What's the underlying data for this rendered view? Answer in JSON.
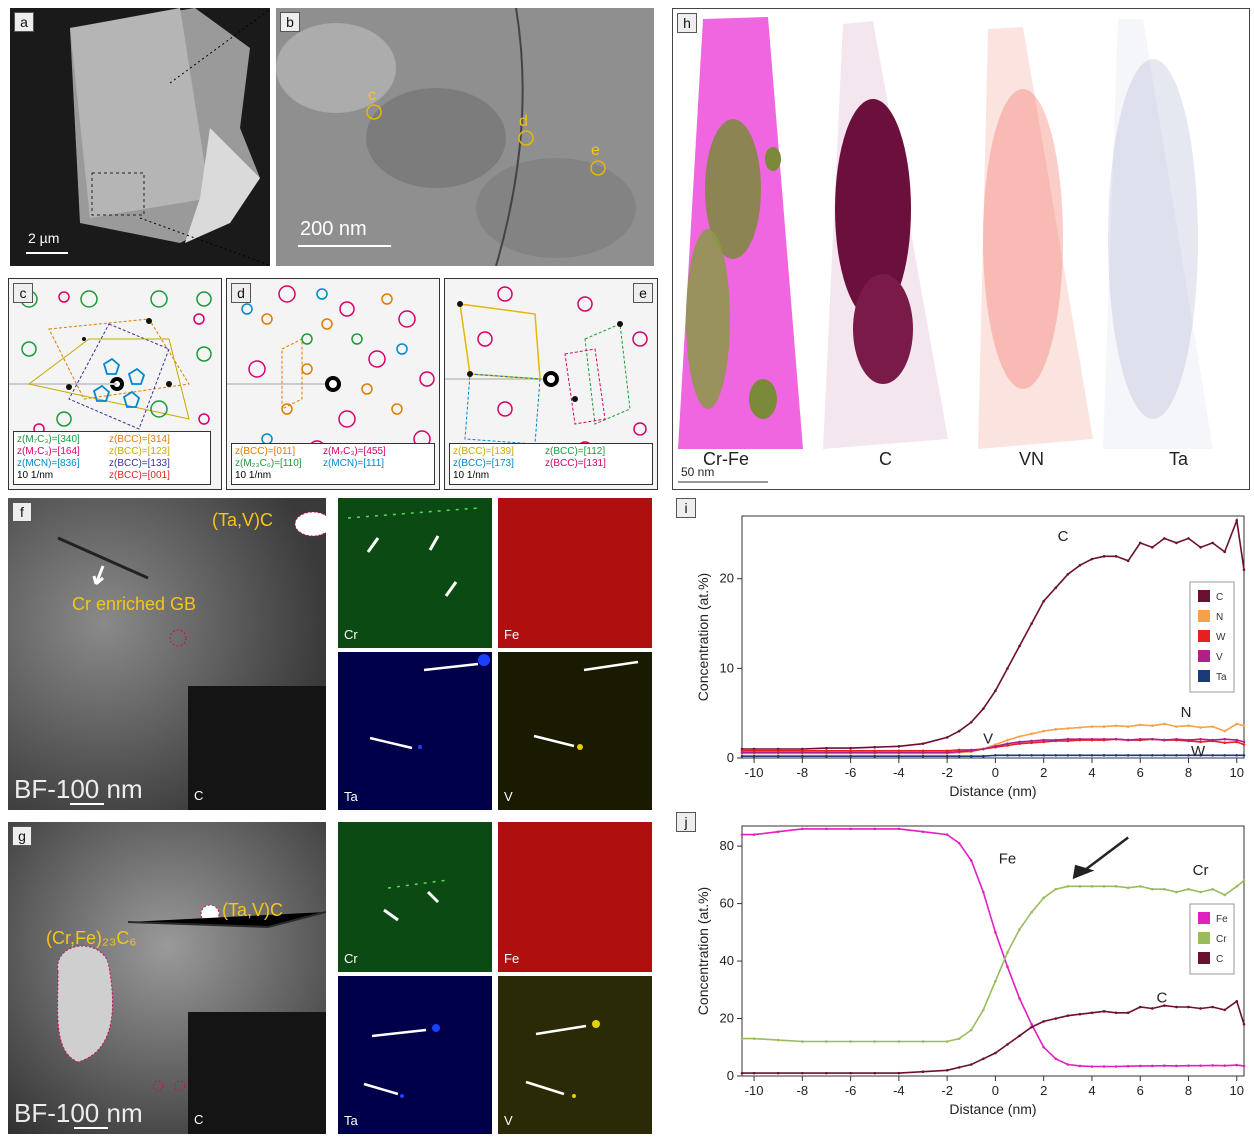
{
  "labels": {
    "a": "a",
    "b": "b",
    "c": "c",
    "d": "d",
    "e": "e",
    "f": "f",
    "g": "g",
    "h": "h",
    "i": "i",
    "j": "j"
  },
  "scalebars": {
    "a": "2 µm",
    "b": "200 nm",
    "c": "10 1/nm",
    "d": "10 1/nm",
    "e": "10 1/nm",
    "f": "BF-100 nm",
    "g": "BF-100 nm",
    "h": "50 nm"
  },
  "panel_b_markers": [
    "c",
    "d",
    "e"
  ],
  "panel_c_zones": [
    {
      "text": "z(M₇C₃)=[340]",
      "color": "#1a9a3a"
    },
    {
      "text": "z(BCC)=[314]",
      "color": "#e07b00"
    },
    {
      "text": "z(M₇C₃)=[164]",
      "color": "#d6006b"
    },
    {
      "text": "z(BCC)=[123]",
      "color": "#c9a800"
    },
    {
      "text": "z(MCN)=[836]",
      "color": "#0088cc"
    },
    {
      "text": "z(BCC)=[133]",
      "color": "#333399"
    },
    {
      "text": "z(BCC)=[001]",
      "color": "#dd2222"
    }
  ],
  "panel_d_zones": [
    {
      "text": "z(BCC)=[011]",
      "color": "#e07b00"
    },
    {
      "text": "z(M₇C₃)=[455]",
      "color": "#d6006b"
    },
    {
      "text": "z(M₂₃C₆)=[110]",
      "color": "#1a9a3a"
    },
    {
      "text": "z(MCN)=[111]",
      "color": "#0088cc"
    }
  ],
  "panel_e_zones": [
    {
      "text": "z(BCC)=[139]",
      "color": "#c9a800"
    },
    {
      "text": "z(BCC)=[112]",
      "color": "#1a9a3a"
    },
    {
      "text": "z(BCC)=[173]",
      "color": "#0088cc"
    },
    {
      "text": "z(BCC)=[131]",
      "color": "#d6006b"
    }
  ],
  "panel_h_labels": [
    "Cr-Fe",
    "C",
    "VN",
    "Ta"
  ],
  "panel_f": {
    "tavc": "(Ta,V)C",
    "gb": "Cr enriched GB",
    "inset": "C"
  },
  "panel_g": {
    "tavc": "(Ta,V)C",
    "crfe": "(Cr,Fe)₂₃C₆",
    "inset": "C"
  },
  "maps_f": [
    "Cr",
    "Fe",
    "Ta",
    "V"
  ],
  "maps_g": [
    "Cr",
    "Fe",
    "Ta",
    "V"
  ],
  "chart_data": [
    {
      "type": "line",
      "panel": "i",
      "xlabel": "Distance (nm)",
      "ylabel": "Concentration (at.%)",
      "xlim": [
        -10.5,
        10.3
      ],
      "ylim": [
        0,
        27
      ],
      "xticks": [
        "-10",
        "-8",
        "-6",
        "-4",
        "-2",
        "0",
        "2",
        "4",
        "6",
        "8",
        "10"
      ],
      "yticks": [
        "0",
        "10",
        "20"
      ],
      "legend": [
        "C",
        "N",
        "W",
        "V",
        "Ta"
      ],
      "annotations": [
        "C",
        "N",
        "V",
        "W"
      ],
      "x": [
        -10.5,
        -10,
        -9,
        -8,
        -7,
        -6,
        -5,
        -4,
        -3,
        -2,
        -1.5,
        -1,
        -0.5,
        0,
        0.5,
        1,
        1.5,
        2,
        2.5,
        3,
        3.5,
        4,
        4.5,
        5,
        5.5,
        6,
        6.5,
        7,
        7.5,
        8,
        8.5,
        9,
        9.5,
        10,
        10.3
      ],
      "series": [
        {
          "name": "C",
          "color": "#6b1030",
          "values": [
            1.0,
            1.0,
            1.0,
            1.0,
            1.1,
            1.1,
            1.2,
            1.3,
            1.6,
            2.3,
            3.0,
            4.0,
            5.5,
            7.5,
            10.0,
            12.5,
            15.0,
            17.5,
            19.0,
            20.5,
            21.5,
            22.2,
            22.5,
            22.5,
            22.0,
            24.0,
            23.5,
            24.5,
            24.0,
            24.5,
            23.5,
            24.0,
            23.0,
            26.5,
            21.0
          ]
        },
        {
          "name": "N",
          "color": "#f7a04a",
          "values": [
            0.5,
            0.5,
            0.5,
            0.5,
            0.5,
            0.5,
            0.5,
            0.5,
            0.5,
            0.5,
            0.6,
            0.7,
            1.0,
            1.5,
            2.0,
            2.4,
            2.7,
            3.0,
            3.2,
            3.3,
            3.4,
            3.5,
            3.5,
            3.6,
            3.5,
            3.7,
            3.6,
            3.8,
            3.5,
            3.6,
            3.4,
            3.5,
            3.0,
            3.8,
            3.6
          ]
        },
        {
          "name": "W",
          "color": "#e62020",
          "values": [
            0.8,
            0.8,
            0.8,
            0.8,
            0.8,
            0.8,
            0.8,
            0.8,
            0.8,
            0.8,
            0.9,
            0.9,
            1.0,
            1.2,
            1.4,
            1.6,
            1.7,
            1.8,
            1.9,
            1.9,
            2.0,
            2.0,
            2.0,
            2.1,
            2.0,
            2.0,
            2.1,
            2.0,
            2.0,
            1.9,
            1.8,
            1.9,
            1.7,
            1.8,
            1.5
          ]
        },
        {
          "name": "V",
          "color": "#b0208a",
          "values": [
            0.6,
            0.6,
            0.6,
            0.6,
            0.6,
            0.6,
            0.6,
            0.6,
            0.6,
            0.6,
            0.7,
            0.8,
            1.0,
            1.3,
            1.6,
            1.8,
            1.9,
            2.0,
            2.0,
            2.1,
            2.1,
            2.1,
            2.1,
            2.1,
            2.0,
            2.1,
            2.1,
            2.0,
            2.1,
            2.0,
            2.1,
            2.0,
            2.1,
            2.0,
            1.8
          ]
        },
        {
          "name": "Ta",
          "color": "#1a3a7a",
          "values": [
            0.2,
            0.2,
            0.2,
            0.2,
            0.2,
            0.2,
            0.2,
            0.2,
            0.2,
            0.2,
            0.2,
            0.2,
            0.2,
            0.3,
            0.3,
            0.3,
            0.3,
            0.3,
            0.3,
            0.3,
            0.3,
            0.3,
            0.3,
            0.3,
            0.3,
            0.3,
            0.3,
            0.3,
            0.3,
            0.3,
            0.3,
            0.3,
            0.3,
            0.3,
            0.3
          ]
        }
      ]
    },
    {
      "type": "line",
      "panel": "j",
      "xlabel": "Distance (nm)",
      "ylabel": "Concentration (at.%)",
      "xlim": [
        -10.5,
        10.3
      ],
      "ylim": [
        0,
        87
      ],
      "xticks": [
        "-10",
        "-8",
        "-6",
        "-4",
        "-2",
        "0",
        "2",
        "4",
        "6",
        "8",
        "10"
      ],
      "yticks": [
        "0",
        "20",
        "40",
        "60",
        "80"
      ],
      "legend": [
        "Fe",
        "Cr",
        "C"
      ],
      "annotations": [
        "Fe",
        "Cr",
        "C"
      ],
      "x": [
        -10.5,
        -10,
        -9,
        -8,
        -7,
        -6,
        -5,
        -4,
        -3,
        -2,
        -1.5,
        -1,
        -0.5,
        0,
        0.5,
        1,
        1.5,
        2,
        2.5,
        3,
        3.5,
        4,
        4.5,
        5,
        5.5,
        6,
        6.5,
        7,
        7.5,
        8,
        8.5,
        9,
        9.5,
        10,
        10.3
      ],
      "series": [
        {
          "name": "Fe",
          "color": "#e020c0",
          "values": [
            84,
            84,
            85,
            86,
            86,
            86,
            86,
            86,
            85,
            84,
            81,
            75,
            64,
            50,
            38,
            27,
            18,
            10,
            6,
            4,
            3.5,
            3.3,
            3.3,
            3.3,
            3.4,
            3.5,
            3.5,
            3.6,
            3.5,
            3.6,
            3.6,
            3.7,
            3.6,
            3.8,
            3.5
          ]
        },
        {
          "name": "Cr",
          "color": "#9abb5a",
          "values": [
            13,
            13,
            12.5,
            12,
            12,
            12,
            12,
            12,
            12,
            12,
            13,
            16,
            23,
            33,
            43,
            51,
            57,
            62,
            65,
            66,
            66,
            66,
            66,
            66,
            65.5,
            66,
            65,
            65,
            64,
            65,
            64,
            65,
            63,
            66,
            68
          ]
        },
        {
          "name": "C",
          "color": "#6b1030",
          "values": [
            1,
            1,
            1,
            1,
            1,
            1,
            1,
            1,
            1.5,
            2,
            3,
            4,
            6,
            8,
            11,
            14,
            17,
            19,
            20,
            21,
            21.5,
            22,
            22.5,
            22,
            22,
            24,
            23.5,
            24.5,
            24,
            24,
            23.5,
            24,
            23,
            26,
            18
          ]
        }
      ]
    }
  ]
}
